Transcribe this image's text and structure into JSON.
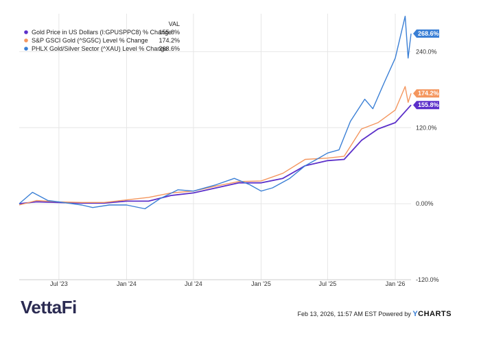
{
  "chart_data": {
    "type": "line",
    "legend_header": "VAL",
    "legend_position": "top-left",
    "grid": true,
    "x_ticks": [
      "Jul '23",
      "Jan '24",
      "Jul '24",
      "Jan '25",
      "Jul '25",
      "Jan '26"
    ],
    "x_range": [
      "2023-03-15",
      "2026-02-13"
    ],
    "y_ticks": [
      "-120.0%",
      "0.00%",
      "120.0%",
      "240.0%"
    ],
    "y_tick_values": [
      -120,
      0,
      120,
      240
    ],
    "ylim": [
      -120,
      300
    ],
    "series": [
      {
        "name": "Gold Price in US Dollars (I:GPUSPPC8) % Change",
        "value_label": "155.8%",
        "color": "#5b2fc9",
        "points": [
          [
            "2023-03-15",
            0
          ],
          [
            "2023-05-01",
            3
          ],
          [
            "2023-07-01",
            2
          ],
          [
            "2023-09-01",
            1
          ],
          [
            "2023-11-01",
            1
          ],
          [
            "2024-01-01",
            4
          ],
          [
            "2024-03-01",
            4
          ],
          [
            "2024-05-01",
            13
          ],
          [
            "2024-07-01",
            17
          ],
          [
            "2024-09-01",
            25
          ],
          [
            "2024-11-01",
            33
          ],
          [
            "2025-01-01",
            33
          ],
          [
            "2025-03-01",
            40
          ],
          [
            "2025-05-01",
            60
          ],
          [
            "2025-07-01",
            68
          ],
          [
            "2025-08-15",
            70
          ],
          [
            "2025-10-01",
            100
          ],
          [
            "2025-11-15",
            118
          ],
          [
            "2026-01-01",
            128
          ],
          [
            "2026-02-13",
            155.8
          ]
        ]
      },
      {
        "name": "S&P GSCI Gold (^SG5C) Level % Change",
        "value_label": "174.2%",
        "color": "#f4965e",
        "points": [
          [
            "2023-03-15",
            -2
          ],
          [
            "2023-05-01",
            5
          ],
          [
            "2023-07-01",
            3
          ],
          [
            "2023-09-01",
            2
          ],
          [
            "2023-11-01",
            2
          ],
          [
            "2024-01-01",
            6
          ],
          [
            "2024-03-01",
            10
          ],
          [
            "2024-05-01",
            17
          ],
          [
            "2024-07-01",
            20
          ],
          [
            "2024-09-01",
            28
          ],
          [
            "2024-11-01",
            35
          ],
          [
            "2025-01-01",
            36
          ],
          [
            "2025-03-01",
            48
          ],
          [
            "2025-05-01",
            70
          ],
          [
            "2025-07-01",
            72
          ],
          [
            "2025-08-15",
            75
          ],
          [
            "2025-10-01",
            118
          ],
          [
            "2025-11-15",
            128
          ],
          [
            "2026-01-01",
            148
          ],
          [
            "2026-01-28",
            185
          ],
          [
            "2026-02-05",
            160
          ],
          [
            "2026-02-13",
            174.2
          ]
        ]
      },
      {
        "name": "PHLX Gold/Silver Sector (^XAU) Level % Change",
        "value_label": "268.6%",
        "color": "#3a7fd5",
        "points": [
          [
            "2023-03-15",
            0
          ],
          [
            "2023-04-20",
            18
          ],
          [
            "2023-06-01",
            5
          ],
          [
            "2023-07-01",
            3
          ],
          [
            "2023-09-01",
            -2
          ],
          [
            "2023-10-01",
            -6
          ],
          [
            "2023-11-15",
            -2
          ],
          [
            "2024-01-01",
            -2
          ],
          [
            "2024-02-20",
            -8
          ],
          [
            "2024-04-01",
            8
          ],
          [
            "2024-05-20",
            22
          ],
          [
            "2024-07-01",
            20
          ],
          [
            "2024-09-01",
            30
          ],
          [
            "2024-10-20",
            40
          ],
          [
            "2024-12-01",
            30
          ],
          [
            "2025-01-01",
            20
          ],
          [
            "2025-02-01",
            25
          ],
          [
            "2025-03-20",
            40
          ],
          [
            "2025-05-01",
            60
          ],
          [
            "2025-06-01",
            70
          ],
          [
            "2025-07-01",
            80
          ],
          [
            "2025-08-01",
            85
          ],
          [
            "2025-09-01",
            130
          ],
          [
            "2025-10-10",
            165
          ],
          [
            "2025-11-01",
            150
          ],
          [
            "2025-12-01",
            190
          ],
          [
            "2026-01-01",
            230
          ],
          [
            "2026-01-28",
            296
          ],
          [
            "2026-02-05",
            230
          ],
          [
            "2026-02-13",
            268.6
          ]
        ]
      }
    ]
  },
  "brand": "VettaFi",
  "footer": {
    "timestamp": "Feb 13, 2026, 11:57 AM EST Powered by",
    "logo_y": "Y",
    "logo_rest": "CHARTS"
  }
}
